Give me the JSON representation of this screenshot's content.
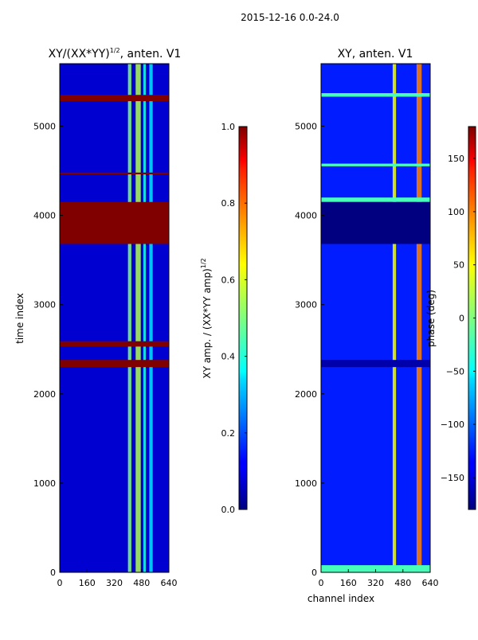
{
  "figure": {
    "suptitle": "2015-12-16 0.0-24.0",
    "xlabel": "channel index"
  },
  "chart_data": [
    {
      "type": "heatmap",
      "title": "XY/(XX*YY)^1/2, anten. V1",
      "title_main": "XY/(XX*YY)",
      "title_sup": "1/2",
      "title_rest": ", anten. V1",
      "xlabel": "",
      "ylabel": "time index",
      "xlim": [
        0,
        640
      ],
      "ylim": [
        0,
        5700
      ],
      "xticks": [
        0,
        160,
        320,
        480,
        640
      ],
      "yticks": [
        0,
        1000,
        2000,
        3000,
        4000,
        5000
      ],
      "colormap": "jet",
      "colorbar": {
        "label_main": "XY amp. / (XX*YY amp)",
        "label_sup": "1/2",
        "range": [
          0.0,
          1.0
        ],
        "ticks": [
          "0.0",
          "0.2",
          "0.4",
          "0.6",
          "0.8",
          "1.0"
        ]
      },
      "background_level": 0.08,
      "masked_blocks": [
        {
          "t_start": 3680,
          "t_end": 4150,
          "level": 1.0
        },
        {
          "t_start": 5280,
          "t_end": 5350,
          "level": 1.0
        },
        {
          "t_start": 2300,
          "t_end": 2380,
          "level": 1.0
        },
        {
          "t_start": 2530,
          "t_end": 2590,
          "level": 1.0
        },
        {
          "t_start": 4460,
          "t_end": 4480,
          "level": 1.0
        }
      ],
      "bright_channel_bands": [
        {
          "c_start": 400,
          "c_end": 420,
          "level": 0.5
        },
        {
          "c_start": 445,
          "c_end": 475,
          "level": 0.55
        },
        {
          "c_start": 490,
          "c_end": 505,
          "level": 0.4
        },
        {
          "c_start": 525,
          "c_end": 545,
          "level": 0.35
        }
      ]
    },
    {
      "type": "heatmap",
      "title": "XY, anten. V1",
      "xlabel": "channel index",
      "ylabel": "",
      "xlim": [
        0,
        640
      ],
      "ylim": [
        0,
        5700
      ],
      "xticks": [
        0,
        160,
        320,
        480,
        640
      ],
      "yticks": [
        0,
        1000,
        2000,
        3000,
        4000,
        5000
      ],
      "colormap": "jet",
      "colorbar": {
        "label": "phase (deg)",
        "range": [
          -180,
          180
        ],
        "ticks": [
          "150",
          "100",
          "50",
          "0",
          "−50",
          "−100",
          "−150"
        ],
        "tick_values": [
          150,
          100,
          50,
          0,
          -50,
          -100,
          -150
        ]
      },
      "background_level": -125,
      "masked_blocks": [
        {
          "t_start": 3680,
          "t_end": 4150,
          "level": -180
        },
        {
          "t_start": 2300,
          "t_end": 2380,
          "level": -165
        }
      ],
      "flag_rows": [
        {
          "t_start": 4150,
          "t_end": 4200,
          "level": -20
        },
        {
          "t_start": 5330,
          "t_end": 5370,
          "level": -20
        },
        {
          "t_start": 0,
          "t_end": 80,
          "level": -20
        },
        {
          "t_start": 4550,
          "t_end": 4580,
          "level": -20
        }
      ],
      "bright_channel_bands": [
        {
          "c_start": 420,
          "c_end": 440,
          "level": 40
        },
        {
          "c_start": 560,
          "c_end": 590,
          "level": 90
        }
      ]
    }
  ]
}
